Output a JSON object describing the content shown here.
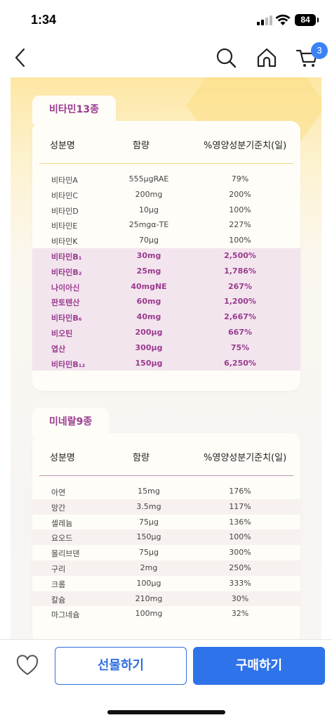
{
  "status_bar": {
    "time": "1:34",
    "battery": "84"
  },
  "nav": {
    "cart_count": "3"
  },
  "vitamins": {
    "tab_label": "비타민13종",
    "headers": [
      "성분명",
      "함량",
      "%영양성분기준치(일)"
    ],
    "rows": [
      {
        "name": "비타민A",
        "amount": "555μgRAE",
        "percent": "79%",
        "highlight": false
      },
      {
        "name": "비타민C",
        "amount": "200mg",
        "percent": "200%",
        "highlight": false
      },
      {
        "name": "비타민D",
        "amount": "10μg",
        "percent": "100%",
        "highlight": false
      },
      {
        "name": "비타민E",
        "amount": "25mgα-TE",
        "percent": "227%",
        "highlight": false
      },
      {
        "name": "비타민K",
        "amount": "70μg",
        "percent": "100%",
        "highlight": false
      },
      {
        "name": "비타민B₁",
        "amount": "30mg",
        "percent": "2,500%",
        "highlight": true
      },
      {
        "name": "비타민B₂",
        "amount": "25mg",
        "percent": "1,786%",
        "highlight": true
      },
      {
        "name": "나이아신",
        "amount": "40mgNE",
        "percent": "267%",
        "highlight": true
      },
      {
        "name": "판토텐산",
        "amount": "60mg",
        "percent": "1,200%",
        "highlight": true
      },
      {
        "name": "비타민B₆",
        "amount": "40mg",
        "percent": "2,667%",
        "highlight": true
      },
      {
        "name": "비오틴",
        "amount": "200μg",
        "percent": "667%",
        "highlight": true
      },
      {
        "name": "엽산",
        "amount": "300μg",
        "percent": "75%",
        "highlight": true
      },
      {
        "name": "비타민B₁₂",
        "amount": "150μg",
        "percent": "6,250%",
        "highlight": true
      }
    ]
  },
  "minerals": {
    "tab_label": "미네랄9종",
    "headers": [
      "성분명",
      "함량",
      "%영양성분기준치(일)"
    ],
    "rows": [
      {
        "name": "아연",
        "amount": "15mg",
        "percent": "176%",
        "alt": false
      },
      {
        "name": "망간",
        "amount": "3.5mg",
        "percent": "117%",
        "alt": true
      },
      {
        "name": "셀레늄",
        "amount": "75μg",
        "percent": "136%",
        "alt": false
      },
      {
        "name": "요오드",
        "amount": "150μg",
        "percent": "100%",
        "alt": true
      },
      {
        "name": "몰리브덴",
        "amount": "75μg",
        "percent": "300%",
        "alt": false
      },
      {
        "name": "구리",
        "amount": "2mg",
        "percent": "250%",
        "alt": true
      },
      {
        "name": "크롬",
        "amount": "100μg",
        "percent": "333%",
        "alt": false
      },
      {
        "name": "칼슘",
        "amount": "210mg",
        "percent": "30%",
        "alt": true
      },
      {
        "name": "마그네슘",
        "amount": "100mg",
        "percent": "32%",
        "alt": false
      }
    ]
  },
  "bottom": {
    "gift_label": "선물하기",
    "buy_label": "구매하기"
  },
  "colors": {
    "accent_purple": "#9a3b8f",
    "primary_blue": "#2f73ea",
    "highlight_row": "#f3e5ee"
  },
  "icons": {
    "back": "chevron-left-icon",
    "search": "search-icon",
    "home": "home-icon",
    "cart": "cart-icon",
    "wishlist": "heart-icon"
  }
}
